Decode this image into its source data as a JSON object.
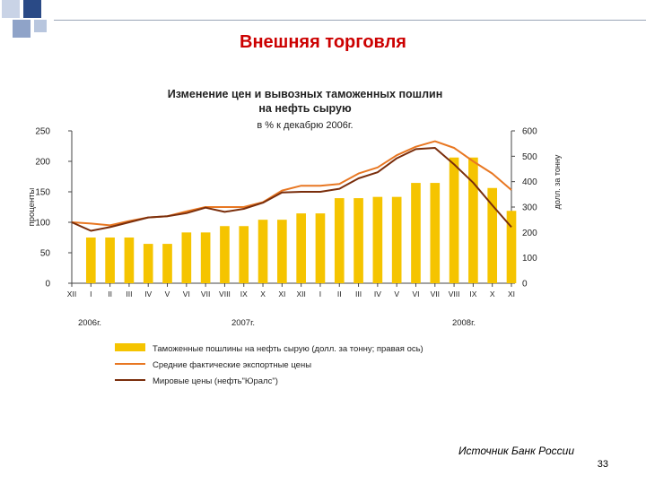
{
  "slide": {
    "title": "Внешняя торговля",
    "source": "Источник Банк России",
    "page_number": "33"
  },
  "colors": {
    "bar": "#f5c400",
    "avg_price_line": "#e87722",
    "world_price_line": "#7a2e0c",
    "title": "#cc0000"
  },
  "chart_data": {
    "type": "bar+line",
    "title": "Изменение цен и вывозных таможенных пошлин на нефть сырую",
    "subtitle": "в % к декабрю 2006г.",
    "ylabel_left": "проценты",
    "ylabel_right": "долл. за тонну",
    "ylim_left": [
      0,
      250
    ],
    "ylim_right": [
      0,
      600
    ],
    "yticks_left": [
      0,
      50,
      100,
      150,
      200,
      250
    ],
    "yticks_right": [
      0,
      100,
      200,
      300,
      400,
      500,
      600
    ],
    "grid": false,
    "categories": [
      "XII",
      "I",
      "II",
      "III",
      "IV",
      "V",
      "VI",
      "VII",
      "VIII",
      "IX",
      "X",
      "XI",
      "XII",
      "I",
      "II",
      "III",
      "IV",
      "V",
      "VI",
      "VII",
      "VIII",
      "IX",
      "X",
      "XI"
    ],
    "year_labels": [
      {
        "label": "2006г.",
        "start_index": 0
      },
      {
        "label": "2007г.",
        "start_index": 1
      },
      {
        "label": "2008г.",
        "start_index": 13
      }
    ],
    "series": [
      {
        "name": "Таможенные пошлины на нефть сырую (долл. за тонну; правая ось)",
        "type": "bar",
        "axis": "right",
        "values": [
          null,
          180,
          180,
          180,
          155,
          155,
          200,
          200,
          225,
          225,
          250,
          250,
          275,
          275,
          335,
          335,
          340,
          340,
          395,
          395,
          495,
          495,
          375,
          285
        ]
      },
      {
        "name": "Средние фактические экспортные цены",
        "type": "line",
        "axis": "left",
        "values": [
          100,
          98,
          95,
          102,
          108,
          110,
          118,
          125,
          125,
          125,
          133,
          152,
          160,
          160,
          163,
          180,
          190,
          210,
          224,
          233,
          222,
          200,
          180,
          153
        ]
      },
      {
        "name": "Мировые цены (нефть\"Юралс\")",
        "type": "line",
        "axis": "left",
        "values": [
          100,
          86,
          92,
          100,
          108,
          110,
          115,
          124,
          117,
          122,
          132,
          149,
          150,
          150,
          155,
          172,
          182,
          205,
          220,
          222,
          195,
          165,
          128,
          92
        ]
      }
    ],
    "legend_position": "bottom"
  }
}
